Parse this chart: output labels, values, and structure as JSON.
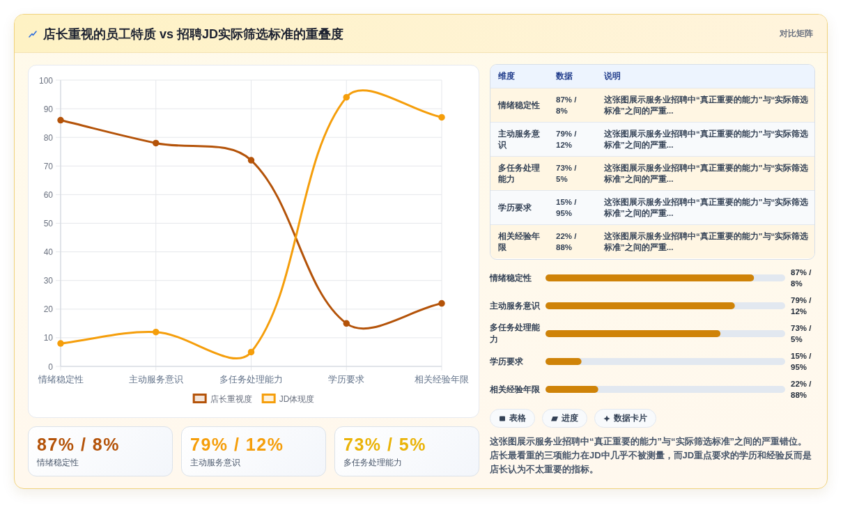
{
  "chart_data": [
    {
      "type": "other",
      "title": "店长重视的员工特质 vs 招聘JD实际筛选标准的重叠度",
      "subtitle": "对比矩阵"
    },
    {
      "type": "line",
      "categories": [
        "情绪稳定性",
        "主动服务意识",
        "多任务处理能力",
        "学历要求",
        "相关经验年限"
      ],
      "series": [
        {
          "name": "店长重视度",
          "color": "#b45309",
          "values": [
            86,
            78,
            72,
            15,
            22
          ]
        },
        {
          "name": "JD体现度",
          "color": "#f59e0b",
          "values": [
            8,
            12,
            5,
            94,
            87
          ]
        }
      ],
      "ylim": [
        0,
        100
      ],
      "yticks": [
        0,
        10,
        20,
        30,
        40,
        50,
        60,
        70,
        80,
        90,
        100
      ],
      "grid": true,
      "legend": "bottom",
      "marker": "circle"
    },
    {
      "type": "other",
      "categories": [
        "情绪稳定性",
        "主动服务意识",
        "多任务处理能力"
      ],
      "value_labels": [
        "87% / 8%",
        "79% / 12%",
        "73% / 5%"
      ]
    },
    {
      "type": "other",
      "categories": [
        "维度",
        "数据",
        "说明"
      ],
      "cell_labels": [
        [
          "情绪稳定性",
          "87% / 8%",
          "这张图展示服务业招聘中“真正重要的能力”与“实际筛选标准”之间的严重..."
        ],
        [
          "主动服务意识",
          "79% / 12%",
          "这张图展示服务业招聘中“真正重要的能力”与“实际筛选标准”之间的严重..."
        ],
        [
          "多任务处理能力",
          "73% / 5%",
          "这张图展示服务业招聘中“真正重要的能力”与“实际筛选标准”之间的严重..."
        ],
        [
          "学历要求",
          "15% / 95%",
          "这张图展示服务业招聘中“真正重要的能力”与“实际筛选标准”之间的严重..."
        ],
        [
          "相关经验年限",
          "22% / 88%",
          "这张图展示服务业招聘中“真正重要的能力”与“实际筛选标准”之间的严重..."
        ]
      ]
    },
    {
      "type": "bar",
      "orientation": "horizontal",
      "categories": [
        "情绪稳定性",
        "主动服务意识",
        "多任务处理能力",
        "学历要求",
        "相关经验年限"
      ],
      "values": [
        87,
        79,
        73,
        15,
        22
      ],
      "value_labels": [
        "87% / 8%",
        "79% / 12%",
        "73% / 5%",
        "15% / 95%",
        "22% / 88%"
      ],
      "color": "#cf8308",
      "xlim": [
        0,
        100
      ],
      "tick_labels": "y"
    },
    {
      "type": "other",
      "categories": [
        "表格",
        "进度",
        "数据卡片"
      ],
      "annotations": [
        "这张图展示服务业招聘中“真正重要的能力”与“实际筛选标准”之间的严重错位。店长最看重的三项能力在JD中几乎不被测量，而JD重点要求的学历和经验反而是店长认为不太重要的指标。"
      ]
    }
  ]
}
